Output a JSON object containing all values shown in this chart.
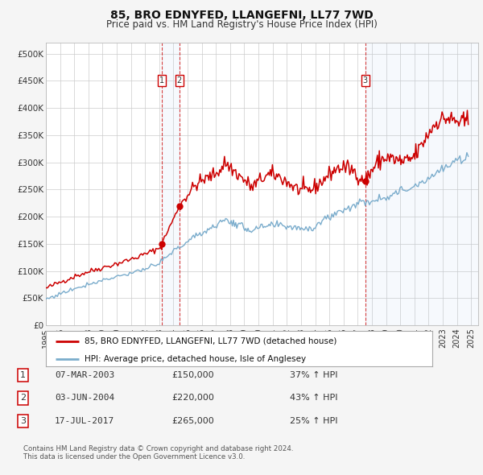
{
  "title": "85, BRO EDNYFED, LLANGEFNI, LL77 7WD",
  "subtitle": "Price paid vs. HM Land Registry's House Price Index (HPI)",
  "legend_line1": "85, BRO EDNYFED, LLANGEFNI, LL77 7WD (detached house)",
  "legend_line2": "HPI: Average price, detached house, Isle of Anglesey",
  "footnote1": "Contains HM Land Registry data © Crown copyright and database right 2024.",
  "footnote2": "This data is licensed under the Open Government Licence v3.0.",
  "red_color": "#cc0000",
  "blue_color": "#7aaccc",
  "background_color": "#f5f5f5",
  "plot_bg_color": "#ffffff",
  "grid_color": "#cccccc",
  "label_color": "#333333",
  "sale_events": [
    {
      "label": "1",
      "date_num": 2003.18,
      "price": 150000,
      "hpi_pct": "37%",
      "date_str": "07-MAR-2003"
    },
    {
      "label": "2",
      "date_num": 2004.42,
      "price": 220000,
      "hpi_pct": "43%",
      "date_str": "03-JUN-2004"
    },
    {
      "label": "3",
      "date_num": 2017.54,
      "price": 265000,
      "hpi_pct": "25%",
      "date_str": "17-JUL-2017"
    }
  ],
  "xlim": [
    1995.0,
    2025.5
  ],
  "ylim": [
    0,
    520000
  ],
  "yticks": [
    0,
    50000,
    100000,
    150000,
    200000,
    250000,
    300000,
    350000,
    400000,
    450000,
    500000
  ],
  "ytick_labels": [
    "£0",
    "£50K",
    "£100K",
    "£150K",
    "£200K",
    "£250K",
    "£300K",
    "£350K",
    "£400K",
    "£450K",
    "£500K"
  ],
  "xticks": [
    1995,
    1996,
    1997,
    1998,
    1999,
    2000,
    2001,
    2002,
    2003,
    2004,
    2005,
    2006,
    2007,
    2008,
    2009,
    2010,
    2011,
    2012,
    2013,
    2014,
    2015,
    2016,
    2017,
    2018,
    2019,
    2020,
    2021,
    2022,
    2023,
    2024,
    2025
  ]
}
